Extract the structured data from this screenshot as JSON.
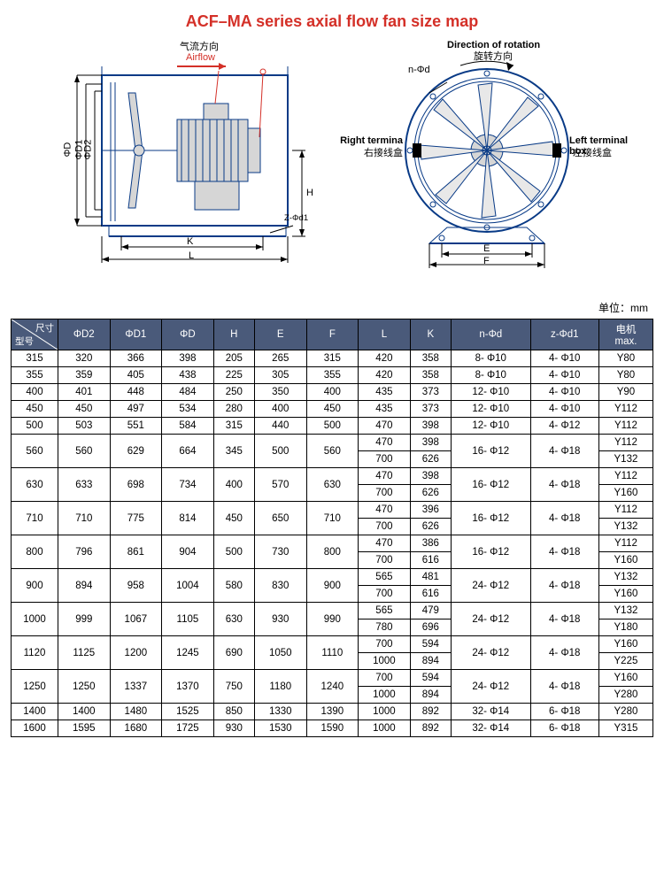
{
  "title": "ACF–MA series axial flow fan size map",
  "units_label": "单位：mm",
  "diagram_labels": {
    "airflow_cn": "气流方向",
    "airflow_en": "Airflow",
    "rot_en": "Direction of rotation",
    "rot_cn": "旋转方向",
    "rt_en": "Right termina",
    "rt_cn": "右接线盒",
    "lt_en": "Left terminal box",
    "lt_cn": "左接线盒",
    "phiD": "ΦD",
    "phiD1": "ΦD1",
    "phiD2": "ΦD2",
    "H": "H",
    "K": "K",
    "L": "L",
    "E": "E",
    "F": "F",
    "nphid": "n-Φd",
    "zphid1": "Z-Φd1"
  },
  "diag_style": {
    "stroke": "#083a86",
    "bg": "#ffffff",
    "red": "#d43028"
  },
  "header_diag": {
    "top": "尺寸",
    "bottom": "型号"
  },
  "columns": [
    "ΦD2",
    "ΦD1",
    "ΦD",
    "H",
    "E",
    "F",
    "L",
    "K",
    "n-Φd",
    "z-Φd1",
    "电机\nmax."
  ],
  "rows": [
    {
      "m": "315",
      "c": [
        "320",
        "366",
        "398",
        "205",
        "265",
        "315",
        "420",
        "358",
        "8- Φ10",
        "4- Φ10",
        "Y80"
      ]
    },
    {
      "m": "355",
      "c": [
        "359",
        "405",
        "438",
        "225",
        "305",
        "355",
        "420",
        "358",
        "8- Φ10",
        "4- Φ10",
        "Y80"
      ]
    },
    {
      "m": "400",
      "c": [
        "401",
        "448",
        "484",
        "250",
        "350",
        "400",
        "435",
        "373",
        "12- Φ10",
        "4- Φ10",
        "Y90"
      ]
    },
    {
      "m": "450",
      "c": [
        "450",
        "497",
        "534",
        "280",
        "400",
        "450",
        "435",
        "373",
        "12- Φ10",
        "4- Φ10",
        "Y112"
      ]
    },
    {
      "m": "500",
      "c": [
        "503",
        "551",
        "584",
        "315",
        "440",
        "500",
        "470",
        "398",
        "12- Φ10",
        "4- Φ12",
        "Y112"
      ]
    },
    {
      "m": "560",
      "rs": 2,
      "c": [
        "560",
        "629",
        "664",
        "345",
        "500",
        "560"
      ],
      "cr": [
        [
          "470",
          "398"
        ],
        [
          "700",
          "626"
        ]
      ],
      "cc": [
        "16- Φ12",
        "4- Φ18"
      ],
      "mot": [
        "Y112",
        "Y132"
      ]
    },
    {
      "m": "630",
      "rs": 2,
      "c": [
        "633",
        "698",
        "734",
        "400",
        "570",
        "630"
      ],
      "cr": [
        [
          "470",
          "398"
        ],
        [
          "700",
          "626"
        ]
      ],
      "cc": [
        "16- Φ12",
        "4- Φ18"
      ],
      "mot": [
        "Y112",
        "Y160"
      ]
    },
    {
      "m": "710",
      "rs": 2,
      "c": [
        "710",
        "775",
        "814",
        "450",
        "650",
        "710"
      ],
      "cr": [
        [
          "470",
          "396"
        ],
        [
          "700",
          "626"
        ]
      ],
      "cc": [
        "16- Φ12",
        "4- Φ18"
      ],
      "mot": [
        "Y112",
        "Y132"
      ]
    },
    {
      "m": "800",
      "rs": 2,
      "c": [
        "796",
        "861",
        "904",
        "500",
        "730",
        "800"
      ],
      "cr": [
        [
          "470",
          "386"
        ],
        [
          "700",
          "616"
        ]
      ],
      "cc": [
        "16- Φ12",
        "4- Φ18"
      ],
      "mot": [
        "Y112",
        "Y160"
      ]
    },
    {
      "m": "900",
      "rs": 2,
      "c": [
        "894",
        "958",
        "1004",
        "580",
        "830",
        "900"
      ],
      "cr": [
        [
          "565",
          "481"
        ],
        [
          "700",
          "616"
        ]
      ],
      "cc": [
        "24- Φ12",
        "4- Φ18"
      ],
      "mot": [
        "Y132",
        "Y160"
      ]
    },
    {
      "m": "1000",
      "rs": 2,
      "c": [
        "999",
        "1067",
        "1105",
        "630",
        "930",
        "990"
      ],
      "cr": [
        [
          "565",
          "479"
        ],
        [
          "780",
          "696"
        ]
      ],
      "cc": [
        "24- Φ12",
        "4- Φ18"
      ],
      "mot": [
        "Y132",
        "Y180"
      ]
    },
    {
      "m": "1120",
      "rs": 2,
      "c": [
        "1125",
        "1200",
        "1245",
        "690",
        "1050",
        "1110"
      ],
      "cr": [
        [
          "700",
          "594"
        ],
        [
          "1000",
          "894"
        ]
      ],
      "cc": [
        "24- Φ12",
        "4- Φ18"
      ],
      "mot": [
        "Y160",
        "Y225"
      ]
    },
    {
      "m": "1250",
      "rs": 2,
      "c": [
        "1250",
        "1337",
        "1370",
        "750",
        "1180",
        "1240"
      ],
      "cr": [
        [
          "700",
          "594"
        ],
        [
          "1000",
          "894"
        ]
      ],
      "cc": [
        "24- Φ12",
        "4- Φ18"
      ],
      "mot": [
        "Y160",
        "Y280"
      ]
    },
    {
      "m": "1400",
      "c": [
        "1400",
        "1480",
        "1525",
        "850",
        "1330",
        "1390",
        "1000",
        "892",
        "32- Φ14",
        "6- Φ18",
        "Y280"
      ]
    },
    {
      "m": "1600",
      "c": [
        "1595",
        "1680",
        "1725",
        "930",
        "1530",
        "1590",
        "1000",
        "892",
        "32- Φ14",
        "6- Φ18",
        "Y315"
      ]
    }
  ],
  "table_style": {
    "header_bg": "#4a5a7a",
    "header_fg": "#ffffff",
    "border": "#000000",
    "fontsize": 11.5
  }
}
